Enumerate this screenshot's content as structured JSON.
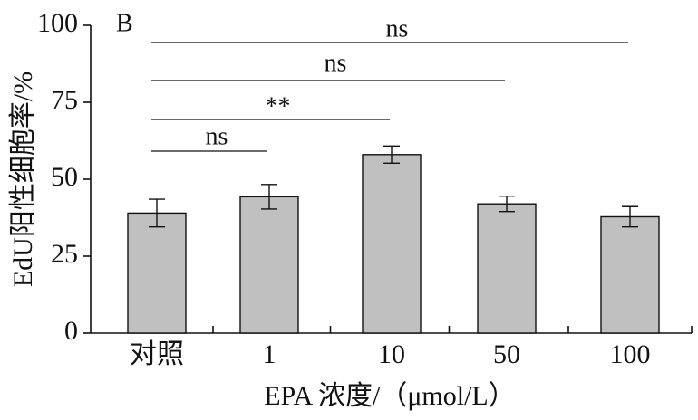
{
  "chart_data": {
    "type": "bar",
    "panel_label": "B",
    "categories": [
      "对照",
      "1",
      "10",
      "50",
      "100"
    ],
    "values": [
      39,
      44.3,
      58,
      42,
      37.8
    ],
    "errors": [
      4.5,
      4,
      2.8,
      2.5,
      3.3
    ],
    "xlabel": "EPA 浓度/（μmol/L）",
    "ylabel": "EdU阳性细胞率/%",
    "ylim": [
      0,
      100
    ],
    "yticks": [
      0,
      25,
      50,
      75,
      100
    ],
    "ytick_labels": [
      "0",
      "25",
      "50",
      "75",
      "100"
    ],
    "bar_color": "#c0c0c0",
    "edge_color": "#111111",
    "grid": false,
    "comparisons": [
      {
        "from": "对照",
        "to": "100",
        "label": "ns"
      },
      {
        "from": "对照",
        "to": "50",
        "label": "ns"
      },
      {
        "from": "对照",
        "to": "10",
        "label": "**"
      },
      {
        "from": "对照",
        "to": "1",
        "label": "ns"
      }
    ]
  }
}
